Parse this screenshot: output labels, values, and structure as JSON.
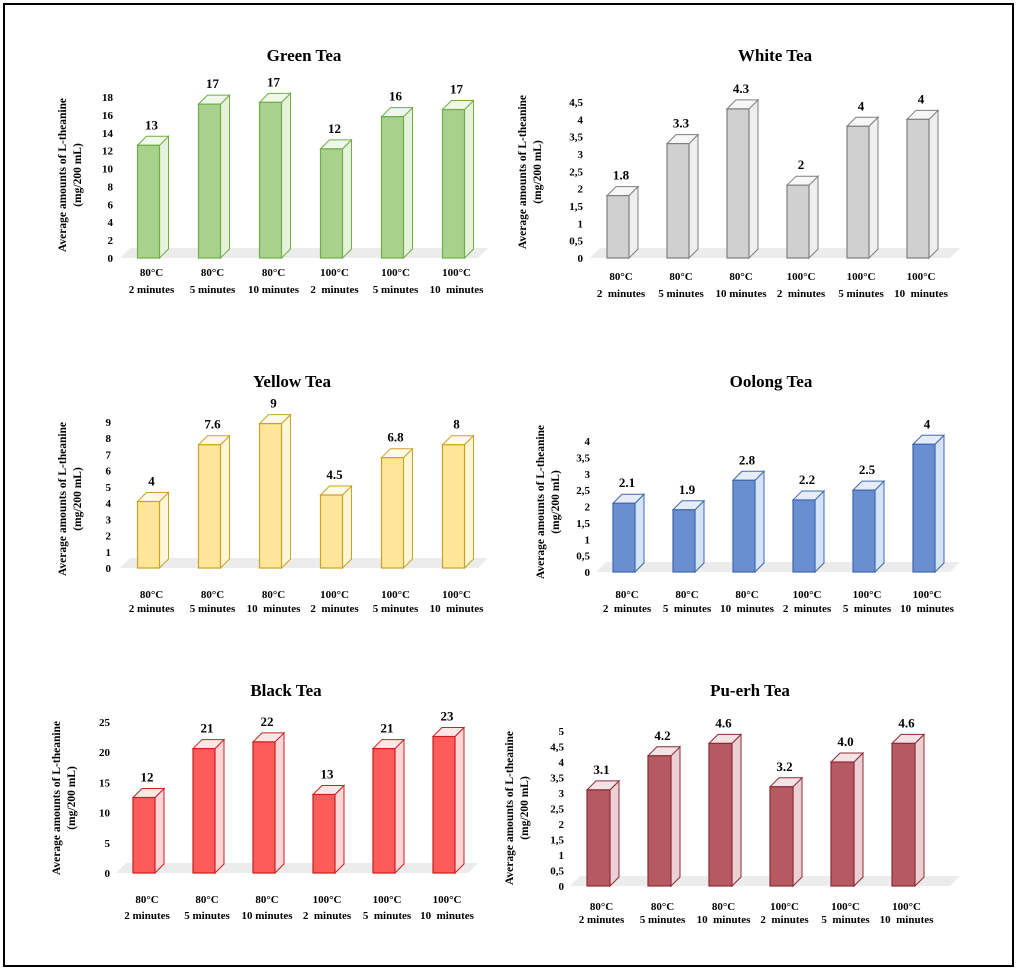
{
  "colors": {
    "green": {
      "front": "#a9d18e",
      "side": "#e6f2dc",
      "top": "#f0f8e9",
      "edge": "#70ad47"
    },
    "white": {
      "front": "#d0d0d0",
      "side": "#efefef",
      "top": "#f7f7f7",
      "edge": "#7f7f7f"
    },
    "yellow": {
      "front": "#ffe699",
      "side": "#fff6d6",
      "top": "#fffae6",
      "edge": "#c9a227"
    },
    "oolong": {
      "front": "#6a8fd0",
      "side": "#d6e2f5",
      "top": "#e6edf9",
      "edge": "#3e68b0"
    },
    "black": {
      "front": "#ff5b5b",
      "side": "#ffd6d6",
      "top": "#ffe7e7",
      "edge": "#cc1f1f"
    },
    "puerh": {
      "front": "#b55a63",
      "side": "#ecd0d3",
      "top": "#f5e2e4",
      "edge": "#8b2c36"
    }
  },
  "chart_data": [
    {
      "type": "bar",
      "title": "Green Tea",
      "ylabel_lines": [
        "Average amounts of L-theanine",
        "(mg/200 mL)"
      ],
      "categories": [
        [
          "80°C",
          "2 minutes"
        ],
        [
          "80°C",
          "5 minutes"
        ],
        [
          "80°C",
          "10 minutes"
        ],
        [
          "100°C",
          "2  minutes"
        ],
        [
          "100°C",
          "5 minutes"
        ],
        [
          "100°C",
          "10  minutes"
        ]
      ],
      "values": [
        12.6,
        17.2,
        17.4,
        12.2,
        15.8,
        16.6
      ],
      "data_labels": [
        "13",
        "17",
        "17",
        "12",
        "16",
        "17"
      ],
      "yticks": [
        "0",
        "2",
        "4",
        "6",
        "8",
        "10",
        "12",
        "14",
        "16",
        "18"
      ],
      "ylim": [
        0,
        18
      ],
      "color": "green"
    },
    {
      "type": "bar",
      "title": "White Tea",
      "ylabel_lines": [
        "Average amounts of L-theanine",
        "(mg/200 mL)"
      ],
      "categories": [
        [
          "80°C",
          "2  minutes"
        ],
        [
          "80°C",
          "5 minutes"
        ],
        [
          "80°C",
          "10 minutes"
        ],
        [
          "100°C",
          "2  minutes"
        ],
        [
          "100°C",
          "5 minutes"
        ],
        [
          "100°C",
          "10  minutes"
        ]
      ],
      "values": [
        1.8,
        3.3,
        4.3,
        2.1,
        3.8,
        4.0
      ],
      "data_labels": [
        "1.8",
        "3.3",
        "4.3",
        "2",
        "4",
        "4"
      ],
      "yticks": [
        "0",
        "0,5",
        "1",
        "1,5",
        "2",
        "2,5",
        "3",
        "3,5",
        "4",
        "4,5"
      ],
      "ylim": [
        0,
        4.5
      ],
      "color": "white"
    },
    {
      "type": "bar",
      "title": "Yellow Tea",
      "ylabel_lines": [
        "Average amounts of L-theanine",
        "(mg/200 mL)"
      ],
      "categories": [
        [
          "80°C",
          "2 minutes"
        ],
        [
          "80°C",
          "5 minutes"
        ],
        [
          "80°C",
          "10  minutes"
        ],
        [
          "100°C",
          "2  minutes"
        ],
        [
          "100°C",
          "5 minutes"
        ],
        [
          "100°C",
          "10  minutes"
        ]
      ],
      "values": [
        4.1,
        7.6,
        8.9,
        4.5,
        6.8,
        7.6
      ],
      "data_labels": [
        "4",
        "7.6",
        "9",
        "4.5",
        "6.8",
        "8"
      ],
      "yticks": [
        "0",
        "1",
        "2",
        "3",
        "4",
        "5",
        "6",
        "7",
        "8",
        "9"
      ],
      "ylim": [
        0,
        9
      ],
      "color": "yellow"
    },
    {
      "type": "bar",
      "title": "Oolong Tea",
      "ylabel_lines": [
        "Average amounts of L-theanine",
        "(mg/200 mL)"
      ],
      "categories": [
        [
          "80°C",
          "2  minutes"
        ],
        [
          "80°C",
          "5  minutes"
        ],
        [
          "80°C",
          "10  minutes"
        ],
        [
          "100°C",
          "2  minutes"
        ],
        [
          "100°C",
          "5  minutes"
        ],
        [
          "100°C",
          "10  minutes"
        ]
      ],
      "values": [
        2.1,
        1.9,
        2.8,
        2.2,
        2.5,
        3.9
      ],
      "data_labels": [
        "2.1",
        "1.9",
        "2.8",
        "2.2",
        "2.5",
        "4"
      ],
      "yticks": [
        "0",
        "0,5",
        "1",
        "1,5",
        "2",
        "2,5",
        "3",
        "3,5",
        "4"
      ],
      "ylim": [
        0,
        4
      ],
      "color": "oolong"
    },
    {
      "type": "bar",
      "title": "Black Tea",
      "ylabel_lines": [
        "Average amounts of L-theanine",
        "(mg/200 mL)"
      ],
      "categories": [
        [
          "80°C",
          "2 minutes"
        ],
        [
          "80°C",
          "5 minutes"
        ],
        [
          "80°C",
          "10 minutes"
        ],
        [
          "100°C",
          "2  minutes"
        ],
        [
          "100°C",
          "5  minutes"
        ],
        [
          "100°C",
          "10  minutes"
        ]
      ],
      "values": [
        12.5,
        20.6,
        21.7,
        13.0,
        20.6,
        22.6
      ],
      "data_labels": [
        "12",
        "21",
        "22",
        "13",
        "21",
        "23"
      ],
      "yticks": [
        "0",
        "5",
        "10",
        "15",
        "20",
        "25"
      ],
      "ylim": [
        0,
        25
      ],
      "color": "black"
    },
    {
      "type": "bar",
      "title": "Pu-erh Tea",
      "ylabel_lines": [
        "Average amounts of L-theanine",
        "(mg/200 mL)"
      ],
      "categories": [
        [
          "80°C",
          "2 minutes"
        ],
        [
          "80°C",
          "5 minutes"
        ],
        [
          "80°C",
          "10  minutes"
        ],
        [
          "100°C",
          "2  minutes"
        ],
        [
          "100°C",
          "5  minutes"
        ],
        [
          "100°C",
          "10  minutes"
        ]
      ],
      "values": [
        3.1,
        4.2,
        4.6,
        3.2,
        4.0,
        4.6
      ],
      "data_labels": [
        "3.1",
        "4.2",
        "4.6",
        "3.2",
        "4.0",
        "4.6"
      ],
      "yticks": [
        "0",
        "0,5",
        "1",
        "1,5",
        "2",
        "2,5",
        "3",
        "3,5",
        "4",
        "4,5",
        "5"
      ],
      "ylim": [
        0,
        5
      ],
      "color": "puerh"
    }
  ]
}
